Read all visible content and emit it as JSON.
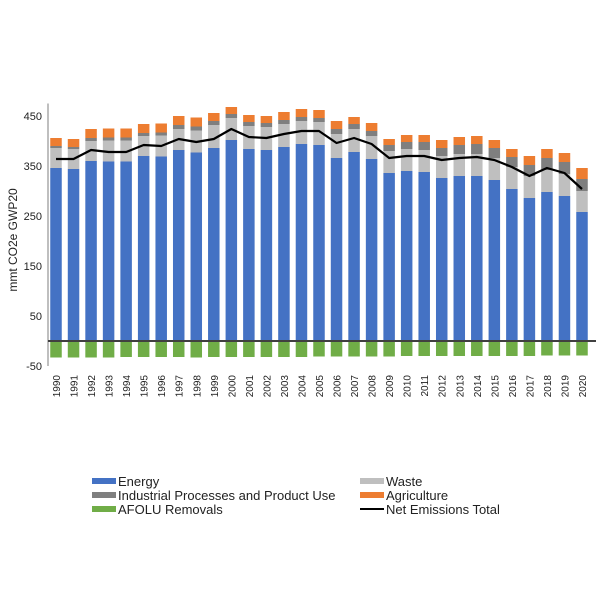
{
  "chart_data": {
    "type": "bar",
    "stacked": true,
    "title": "",
    "xlabel": "",
    "ylabel": "mmt CO2e GWP20",
    "ylim": [
      -50,
      475
    ],
    "yticks": [
      -50,
      50,
      150,
      250,
      350,
      450
    ],
    "grid": false,
    "legend_position": "bottom",
    "categories": [
      "1990",
      "1991",
      "1992",
      "1993",
      "1994",
      "1995",
      "1996",
      "1997",
      "1998",
      "1999",
      "2000",
      "2001",
      "2002",
      "2003",
      "2004",
      "2005",
      "2006",
      "2007",
      "2008",
      "2009",
      "2010",
      "2011",
      "2012",
      "2013",
      "2014",
      "2015",
      "2016",
      "2017",
      "2018",
      "2019",
      "2020"
    ],
    "series": [
      {
        "name": "Energy",
        "color": "#4472C4",
        "kind": "bar",
        "values": [
          346,
          344,
          360,
          359,
          359,
          370,
          369,
          382,
          377,
          386,
          402,
          384,
          382,
          388,
          394,
          392,
          366,
          378,
          364,
          336,
          340,
          338,
          326,
          330,
          330,
          322,
          304,
          286,
          298,
          290,
          258
        ]
      },
      {
        "name": "Waste",
        "color": "#BFBFBF",
        "kind": "bar",
        "values": [
          40,
          40,
          40,
          42,
          42,
          40,
          42,
          42,
          44,
          46,
          44,
          46,
          46,
          46,
          46,
          46,
          48,
          46,
          46,
          44,
          44,
          44,
          44,
          44,
          44,
          44,
          44,
          44,
          44,
          44,
          42
        ]
      },
      {
        "name": "Industrial Processes and Product Use",
        "color": "#7F7F7F",
        "kind": "bar",
        "values": [
          4,
          4,
          6,
          6,
          6,
          6,
          6,
          8,
          8,
          8,
          8,
          8,
          8,
          8,
          8,
          8,
          10,
          10,
          10,
          12,
          14,
          16,
          16,
          18,
          20,
          20,
          20,
          22,
          24,
          24,
          24
        ]
      },
      {
        "name": "Agriculture",
        "color": "#ED7D31",
        "kind": "bar",
        "values": [
          16,
          16,
          18,
          18,
          18,
          18,
          18,
          18,
          18,
          16,
          14,
          14,
          14,
          16,
          16,
          16,
          16,
          14,
          16,
          12,
          14,
          14,
          16,
          16,
          16,
          16,
          16,
          18,
          18,
          18,
          22
        ]
      },
      {
        "name": "AFOLU Removals",
        "color": "#70AD47",
        "kind": "bar",
        "values": [
          -33,
          -33,
          -33,
          -33,
          -32,
          -32,
          -32,
          -32,
          -33,
          -32,
          -32,
          -32,
          -32,
          -32,
          -32,
          -31,
          -31,
          -31,
          -31,
          -31,
          -30,
          -30,
          -30,
          -30,
          -30,
          -30,
          -30,
          -30,
          -29,
          -29,
          -29
        ]
      },
      {
        "name": "Net Emissions Total",
        "color": "#000000",
        "kind": "line",
        "values": [
          364,
          364,
          382,
          378,
          378,
          392,
          390,
          404,
          398,
          404,
          424,
          408,
          406,
          414,
          420,
          420,
          396,
          406,
          394,
          366,
          370,
          370,
          362,
          366,
          368,
          362,
          348,
          330,
          346,
          336,
          304
        ]
      }
    ]
  },
  "legend": {
    "items": [
      {
        "label": "Energy",
        "color": "#4472C4",
        "type": "swatch"
      },
      {
        "label": "Waste",
        "color": "#BFBFBF",
        "type": "swatch"
      },
      {
        "label": "Industrial Processes and Product Use",
        "color": "#7F7F7F",
        "type": "swatch"
      },
      {
        "label": "Agriculture",
        "color": "#ED7D31",
        "type": "swatch"
      },
      {
        "label": "AFOLU Removals",
        "color": "#70AD47",
        "type": "swatch"
      },
      {
        "label": "Net Emissions Total",
        "color": "#000000",
        "type": "line"
      }
    ]
  }
}
